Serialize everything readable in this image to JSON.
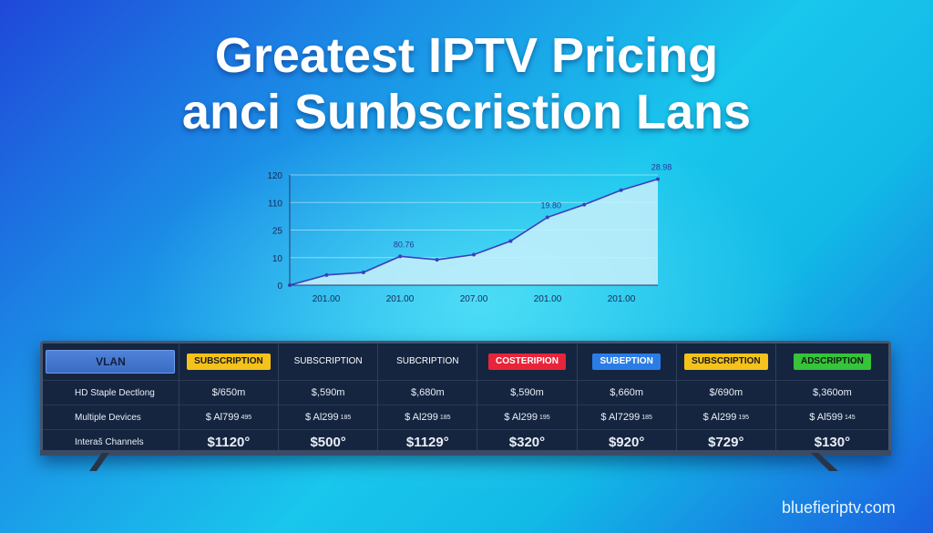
{
  "title": {
    "line1": "Greatest IPTV Pricing",
    "line2": "anci Sunbscristion Lans"
  },
  "chart_data": {
    "type": "area",
    "y_ticks": [
      "120",
      "110",
      "25",
      "10",
      "0"
    ],
    "x_ticks": [
      "201.00",
      "201.00",
      "207.00",
      "201.00",
      "201.00"
    ],
    "values": [
      0,
      1.2,
      1.5,
      3.4,
      3.0,
      3.6,
      5.2,
      8.0,
      9.5,
      11.2,
      12.5
    ],
    "annotations": [
      {
        "text": "80.76",
        "index": 3
      },
      {
        "text": "19.80",
        "index": 7
      },
      {
        "text": "28.98",
        "index": 10
      }
    ],
    "ylim": [
      0,
      13
    ],
    "grid": true,
    "line_color": "#3a3fbf",
    "fill_color": "#c8f0fb"
  },
  "table": {
    "plan_header": "VLAN",
    "features": [
      {
        "label": "HD Staple Dectlong",
        "color": "#38c43a"
      },
      {
        "label": "Multiple Devices",
        "color": "#22b4e6"
      },
      {
        "label": "Interaš Channels",
        "color": "#9b5de5"
      }
    ],
    "plans": [
      {
        "header": "SUBSCRIPTION",
        "style": "yellow",
        "r1": "$/650m",
        "r2": "$ Al799",
        "r2_sup": "495",
        "price": "$1120°"
      },
      {
        "header": "SUBSCRIPTION",
        "style": "none",
        "r1": "$,590m",
        "r2": "$ Al299",
        "r2_sup": "185",
        "price": "$500°"
      },
      {
        "header": "SUBCRIPTION",
        "style": "none",
        "r1": "$,680m",
        "r2": "$ Al299",
        "r2_sup": "185",
        "price": "$1129°"
      },
      {
        "header": "COSTERIPION",
        "style": "red",
        "r1": "$,590m",
        "r2": "$ Al299",
        "r2_sup": "195",
        "price": "$320°"
      },
      {
        "header": "SUBEPTION",
        "style": "blue",
        "r1": "$,660m",
        "r2": "$ Al7299",
        "r2_sup": "185",
        "price": "$920°"
      },
      {
        "header": "SUBSCRIPTION",
        "style": "yellow",
        "r1": "$/690m",
        "r2": "$ Al299",
        "r2_sup": "195",
        "price": "$729°"
      },
      {
        "header": "ADSCRIPTION",
        "style": "green",
        "r1": "$,360om",
        "r2": "$ Al599",
        "r2_sup": "145",
        "price": "$130°"
      }
    ]
  },
  "brand": "bluefieriptv.com"
}
